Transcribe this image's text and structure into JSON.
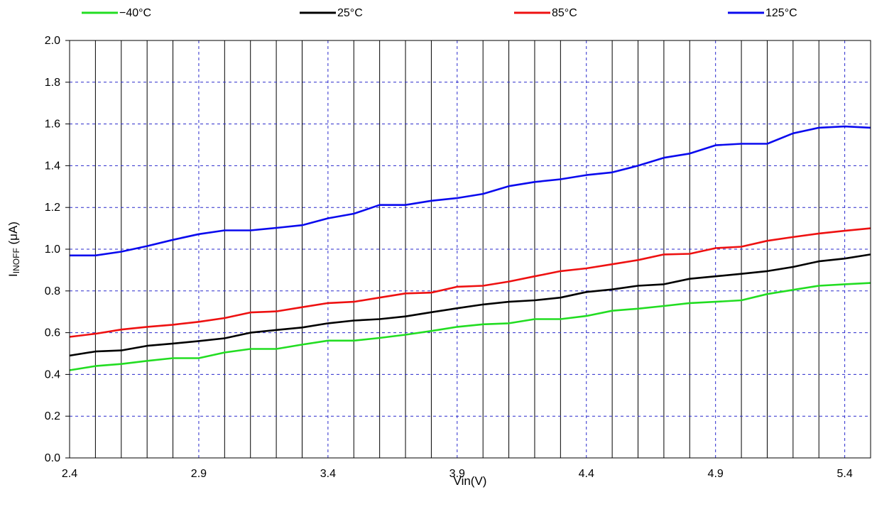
{
  "chart_data": {
    "type": "line",
    "title": "",
    "xlabel": "Vin(V)",
    "ylabel_main": "I",
    "ylabel_sub": "INOFF",
    "ylabel_unit": " (μA)",
    "xlim": [
      2.4,
      5.5
    ],
    "ylim": [
      0.0,
      2.0
    ],
    "x_ticks": [
      2.4,
      2.9,
      3.4,
      3.9,
      4.4,
      4.9,
      5.4
    ],
    "x_tick_labels": [
      "2.4",
      "2.9",
      "3.4",
      "3.9",
      "4.4",
      "4.9",
      "5.4"
    ],
    "y_ticks": [
      0.0,
      0.2,
      0.4,
      0.6,
      0.8,
      1.0,
      1.2,
      1.4,
      1.6,
      1.8,
      2.0
    ],
    "y_tick_labels": [
      "0.0",
      "0.2",
      "0.4",
      "0.6",
      "0.8",
      "1.0",
      "1.2",
      "1.4",
      "1.6",
      "1.8",
      "2.0"
    ],
    "grid": "solid vertical lines every 0.1 V; dashed blue gridlines at labeled ticks",
    "legend_position": "top",
    "x": [
      2.4,
      2.5,
      2.6,
      2.7,
      2.8,
      2.9,
      3.0,
      3.1,
      3.2,
      3.3,
      3.4,
      3.5,
      3.6,
      3.7,
      3.8,
      3.9,
      4.0,
      4.1,
      4.2,
      4.3,
      4.4,
      4.5,
      4.6,
      4.7,
      4.8,
      4.9,
      5.0,
      5.1,
      5.2,
      5.3,
      5.4,
      5.5
    ],
    "series": [
      {
        "name": "−40°C",
        "color": "#22dd22",
        "values": [
          0.42,
          0.44,
          0.45,
          0.465,
          0.478,
          0.478,
          0.505,
          0.522,
          0.522,
          0.543,
          0.562,
          0.562,
          0.575,
          0.59,
          0.608,
          0.628,
          0.64,
          0.645,
          0.665,
          0.665,
          0.68,
          0.705,
          0.715,
          0.728,
          0.742,
          0.748,
          0.755,
          0.785,
          0.805,
          0.825,
          0.832,
          0.838
        ]
      },
      {
        "name": "25°C",
        "color": "#000000",
        "values": [
          0.49,
          0.51,
          0.515,
          0.537,
          0.548,
          0.56,
          0.573,
          0.6,
          0.613,
          0.625,
          0.645,
          0.658,
          0.665,
          0.678,
          0.698,
          0.717,
          0.735,
          0.748,
          0.755,
          0.768,
          0.795,
          0.807,
          0.825,
          0.832,
          0.858,
          0.87,
          0.882,
          0.895,
          0.915,
          0.942,
          0.955,
          0.975
        ]
      },
      {
        "name": "85°C",
        "color": "#ee1111",
        "values": [
          0.58,
          0.595,
          0.615,
          0.628,
          0.638,
          0.652,
          0.67,
          0.697,
          0.702,
          0.722,
          0.742,
          0.748,
          0.768,
          0.788,
          0.792,
          0.82,
          0.825,
          0.845,
          0.87,
          0.895,
          0.908,
          0.928,
          0.948,
          0.975,
          0.978,
          1.005,
          1.012,
          1.04,
          1.058,
          1.075,
          1.088,
          1.1
        ]
      },
      {
        "name": "125°C",
        "color": "#0a0aee",
        "values": [
          0.97,
          0.97,
          0.988,
          1.015,
          1.045,
          1.072,
          1.09,
          1.09,
          1.102,
          1.115,
          1.148,
          1.17,
          1.212,
          1.212,
          1.232,
          1.245,
          1.265,
          1.302,
          1.322,
          1.335,
          1.355,
          1.368,
          1.4,
          1.438,
          1.458,
          1.498,
          1.505,
          1.505,
          1.555,
          1.582,
          1.588,
          1.582
        ]
      }
    ]
  }
}
